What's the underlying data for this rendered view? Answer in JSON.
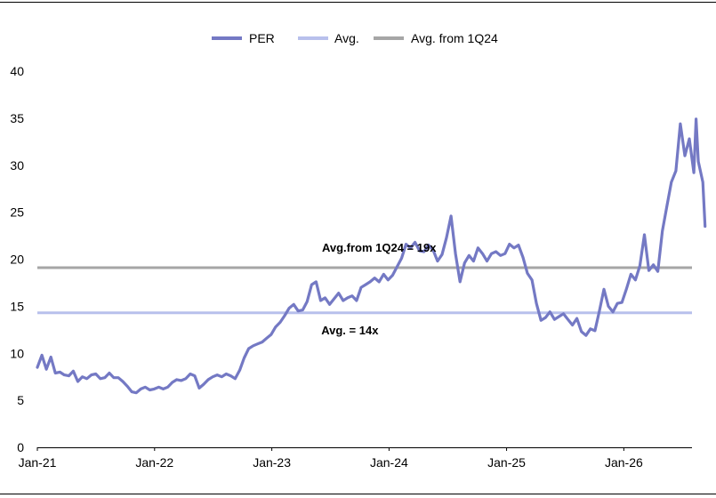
{
  "chart_data": {
    "type": "line",
    "title": "",
    "xlabel": "",
    "ylabel": "",
    "ylim": [
      0,
      40
    ],
    "y_ticks": [
      "0",
      "5",
      "10",
      "15",
      "20",
      "25",
      "30",
      "35",
      "40"
    ],
    "x_ticks": [
      {
        "date": "2021-01-01",
        "label": "Jan-21"
      },
      {
        "date": "2022-01-01",
        "label": "Jan-22"
      },
      {
        "date": "2023-01-01",
        "label": "Jan-23"
      },
      {
        "date": "2024-01-01",
        "label": "Jan-24"
      },
      {
        "date": "2025-01-01",
        "label": "Jan-25"
      },
      {
        "date": "2026-01-01",
        "label": "Jan-26"
      }
    ],
    "grid": false,
    "legend_position": "top-center",
    "legend": [
      "PER",
      "Avg.",
      "Avg. from 1Q24"
    ],
    "series": [
      {
        "name": "PER",
        "color": "#7479c4",
        "points": [
          [
            "2021-01-01",
            8.5
          ],
          [
            "2021-01-15",
            9.8
          ],
          [
            "2021-01-29",
            8.3
          ],
          [
            "2021-02-12",
            9.6
          ],
          [
            "2021-02-26",
            7.9
          ],
          [
            "2021-03-12",
            8.0
          ],
          [
            "2021-03-26",
            7.7
          ],
          [
            "2021-04-09",
            7.6
          ],
          [
            "2021-04-23",
            8.1
          ],
          [
            "2021-05-07",
            7.0
          ],
          [
            "2021-05-21",
            7.5
          ],
          [
            "2021-06-04",
            7.3
          ],
          [
            "2021-06-18",
            7.7
          ],
          [
            "2021-07-02",
            7.8
          ],
          [
            "2021-07-16",
            7.3
          ],
          [
            "2021-07-30",
            7.4
          ],
          [
            "2021-08-13",
            7.9
          ],
          [
            "2021-08-27",
            7.4
          ],
          [
            "2021-09-10",
            7.4
          ],
          [
            "2021-09-24",
            7.0
          ],
          [
            "2021-10-08",
            6.5
          ],
          [
            "2021-10-22",
            5.9
          ],
          [
            "2021-11-05",
            5.8
          ],
          [
            "2021-11-19",
            6.2
          ],
          [
            "2021-12-03",
            6.4
          ],
          [
            "2021-12-17",
            6.1
          ],
          [
            "2021-12-31",
            6.2
          ],
          [
            "2022-01-14",
            6.4
          ],
          [
            "2022-01-28",
            6.2
          ],
          [
            "2022-02-11",
            6.4
          ],
          [
            "2022-02-25",
            6.9
          ],
          [
            "2022-03-11",
            7.2
          ],
          [
            "2022-03-25",
            7.1
          ],
          [
            "2022-04-08",
            7.3
          ],
          [
            "2022-04-22",
            7.8
          ],
          [
            "2022-05-06",
            7.6
          ],
          [
            "2022-05-20",
            6.3
          ],
          [
            "2022-06-03",
            6.7
          ],
          [
            "2022-06-17",
            7.2
          ],
          [
            "2022-07-01",
            7.5
          ],
          [
            "2022-07-15",
            7.7
          ],
          [
            "2022-07-29",
            7.5
          ],
          [
            "2022-08-12",
            7.8
          ],
          [
            "2022-08-26",
            7.6
          ],
          [
            "2022-09-09",
            7.3
          ],
          [
            "2022-09-23",
            8.2
          ],
          [
            "2022-10-07",
            9.5
          ],
          [
            "2022-10-21",
            10.5
          ],
          [
            "2022-11-04",
            10.8
          ],
          [
            "2022-11-18",
            11.0
          ],
          [
            "2022-12-02",
            11.2
          ],
          [
            "2022-12-16",
            11.6
          ],
          [
            "2022-12-30",
            12.0
          ],
          [
            "2023-01-13",
            12.8
          ],
          [
            "2023-01-27",
            13.3
          ],
          [
            "2023-02-10",
            14.0
          ],
          [
            "2023-02-24",
            14.8
          ],
          [
            "2023-03-10",
            15.2
          ],
          [
            "2023-03-24",
            14.5
          ],
          [
            "2023-04-07",
            14.6
          ],
          [
            "2023-04-21",
            15.5
          ],
          [
            "2023-05-05",
            17.3
          ],
          [
            "2023-05-19",
            17.6
          ],
          [
            "2023-06-02",
            15.6
          ],
          [
            "2023-06-16",
            15.9
          ],
          [
            "2023-06-30",
            15.2
          ],
          [
            "2023-07-14",
            15.8
          ],
          [
            "2023-07-28",
            16.4
          ],
          [
            "2023-08-11",
            15.6
          ],
          [
            "2023-08-25",
            15.9
          ],
          [
            "2023-09-08",
            16.1
          ],
          [
            "2023-09-22",
            15.6
          ],
          [
            "2023-10-06",
            17.0
          ],
          [
            "2023-10-20",
            17.3
          ],
          [
            "2023-11-03",
            17.6
          ],
          [
            "2023-11-17",
            18.0
          ],
          [
            "2023-12-01",
            17.6
          ],
          [
            "2023-12-15",
            18.4
          ],
          [
            "2023-12-29",
            17.8
          ],
          [
            "2024-01-12",
            18.3
          ],
          [
            "2024-01-26",
            19.2
          ],
          [
            "2024-02-09",
            20.1
          ],
          [
            "2024-02-23",
            21.6
          ],
          [
            "2024-03-08",
            21.2
          ],
          [
            "2024-03-22",
            21.8
          ],
          [
            "2024-04-05",
            20.9
          ],
          [
            "2024-04-19",
            20.8
          ],
          [
            "2024-05-03",
            21.5
          ],
          [
            "2024-05-17",
            21.0
          ],
          [
            "2024-05-31",
            19.8
          ],
          [
            "2024-06-14",
            20.5
          ],
          [
            "2024-06-28",
            22.3
          ],
          [
            "2024-07-12",
            24.6
          ],
          [
            "2024-07-26",
            20.6
          ],
          [
            "2024-08-09",
            17.6
          ],
          [
            "2024-08-23",
            19.6
          ],
          [
            "2024-09-06",
            20.4
          ],
          [
            "2024-09-20",
            19.8
          ],
          [
            "2024-10-04",
            21.2
          ],
          [
            "2024-10-18",
            20.6
          ],
          [
            "2024-11-01",
            19.8
          ],
          [
            "2024-11-15",
            20.6
          ],
          [
            "2024-11-29",
            20.8
          ],
          [
            "2024-12-13",
            20.4
          ],
          [
            "2024-12-27",
            20.6
          ],
          [
            "2025-01-10",
            21.6
          ],
          [
            "2025-01-24",
            21.2
          ],
          [
            "2025-02-07",
            21.5
          ],
          [
            "2025-02-21",
            20.2
          ],
          [
            "2025-03-07",
            18.5
          ],
          [
            "2025-03-21",
            17.8
          ],
          [
            "2025-04-04",
            15.3
          ],
          [
            "2025-04-18",
            13.5
          ],
          [
            "2025-05-02",
            13.8
          ],
          [
            "2025-05-16",
            14.4
          ],
          [
            "2025-05-30",
            13.6
          ],
          [
            "2025-06-13",
            13.9
          ],
          [
            "2025-06-27",
            14.2
          ],
          [
            "2025-07-11",
            13.6
          ],
          [
            "2025-07-25",
            13.0
          ],
          [
            "2025-08-08",
            13.7
          ],
          [
            "2025-08-22",
            12.3
          ],
          [
            "2025-09-05",
            11.9
          ],
          [
            "2025-09-19",
            12.6
          ],
          [
            "2025-10-03",
            12.4
          ],
          [
            "2025-10-17",
            14.5
          ],
          [
            "2025-10-31",
            16.8
          ],
          [
            "2025-11-14",
            15.0
          ],
          [
            "2025-11-28",
            14.4
          ],
          [
            "2025-12-12",
            15.3
          ],
          [
            "2025-12-26",
            15.4
          ],
          [
            "2026-01-09",
            16.8
          ],
          [
            "2026-01-23",
            18.4
          ],
          [
            "2026-02-06",
            17.8
          ],
          [
            "2026-02-20",
            19.3
          ],
          [
            "2026-03-06",
            22.6
          ],
          [
            "2026-03-20",
            18.8
          ],
          [
            "2026-04-03",
            19.4
          ],
          [
            "2026-04-17",
            18.7
          ],
          [
            "2026-05-01",
            23.0
          ],
          [
            "2026-05-15",
            25.6
          ],
          [
            "2026-05-29",
            28.2
          ],
          [
            "2026-06-12",
            29.4
          ],
          [
            "2026-06-26",
            34.4
          ],
          [
            "2026-07-10",
            31.0
          ],
          [
            "2026-07-24",
            32.8
          ],
          [
            "2026-08-07",
            29.2
          ],
          [
            "2026-08-14",
            34.9
          ],
          [
            "2026-08-21",
            30.4
          ],
          [
            "2026-09-04",
            28.2
          ],
          [
            "2026-09-11",
            23.5
          ]
        ]
      },
      {
        "name": "Avg.",
        "color": "#b8c0ec",
        "value": 14.3
      },
      {
        "name": "Avg. from 1Q24",
        "color": "#a6a6a6",
        "value": 19.1
      }
    ],
    "annotations": [
      {
        "text": "Avg.from 1Q24  = 19x",
        "date": "2023-12-01",
        "y": 20.8
      },
      {
        "text": "Avg. = 14x",
        "date": "2023-09-01",
        "y": 12.0
      }
    ]
  }
}
